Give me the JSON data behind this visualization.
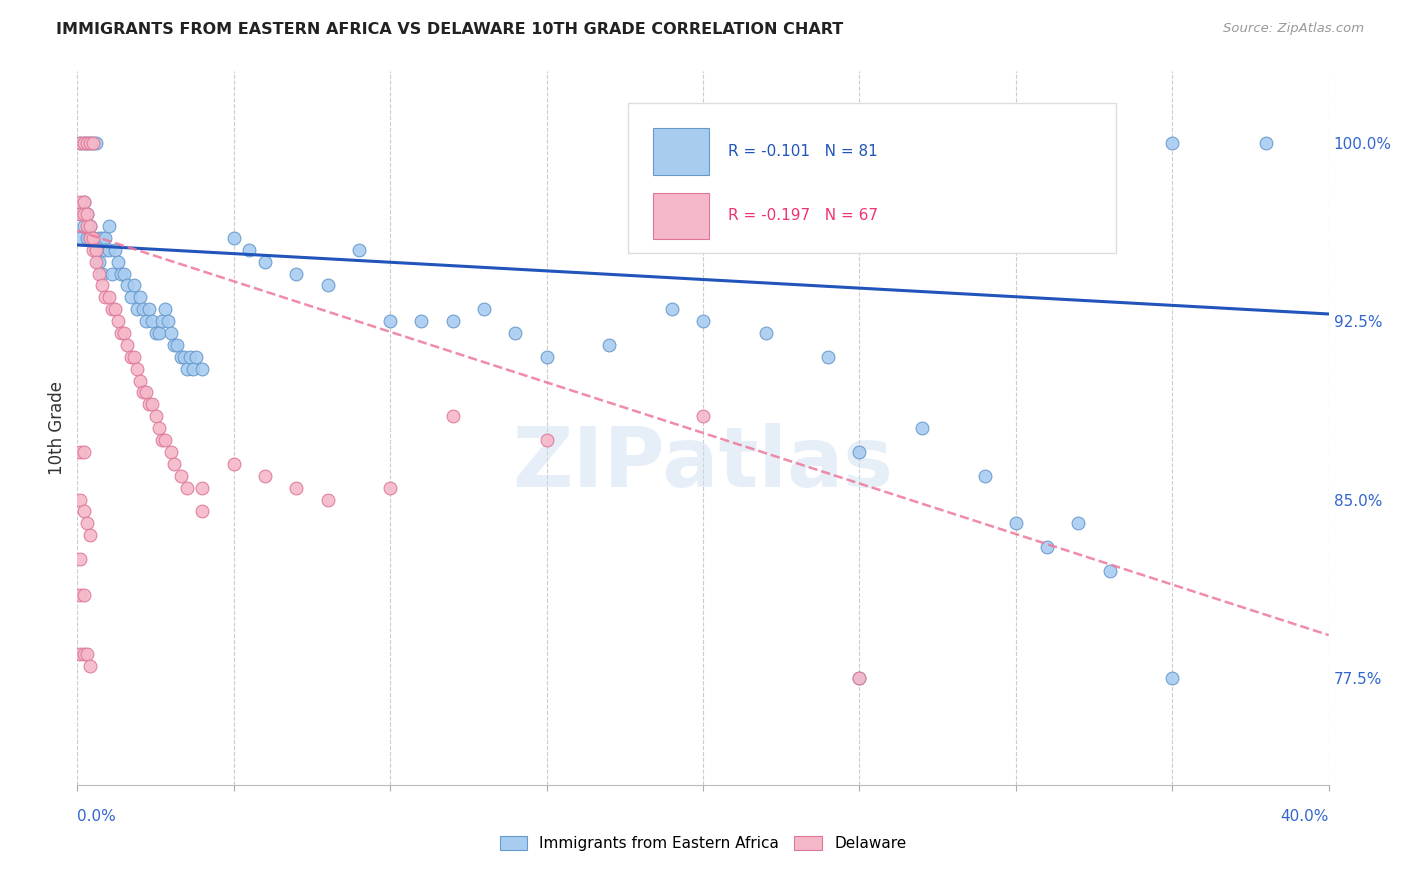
{
  "title": "IMMIGRANTS FROM EASTERN AFRICA VS DELAWARE 10TH GRADE CORRELATION CHART",
  "source": "Source: ZipAtlas.com",
  "ylabel": "10th Grade",
  "ytick_labels": [
    "100.0%",
    "92.5%",
    "85.0%",
    "77.5%"
  ],
  "ytick_values": [
    1.0,
    0.925,
    0.85,
    0.775
  ],
  "xmin": 0.0,
  "xmax": 0.4,
  "ymin": 0.73,
  "ymax": 1.03,
  "legend_blue_text": "R = -0.101   N = 81",
  "legend_pink_text": "R = -0.197   N = 67",
  "legend_blue_label": "Immigrants from Eastern Africa",
  "legend_pink_label": "Delaware",
  "watermark": "ZIPatlas",
  "blue_color": "#A8CCF0",
  "pink_color": "#F5B8C8",
  "blue_edge_color": "#6699CC",
  "pink_edge_color": "#DD7799",
  "blue_line_color": "#2255BB",
  "pink_line_color": "#EE7799",
  "blue_scatter_x": [
    0.001,
    0.001,
    0.001,
    0.002,
    0.002,
    0.002,
    0.003,
    0.003,
    0.003,
    0.004,
    0.004,
    0.004,
    0.005,
    0.005,
    0.006,
    0.006,
    0.007,
    0.007,
    0.008,
    0.008,
    0.009,
    0.009,
    0.01,
    0.01,
    0.011,
    0.012,
    0.013,
    0.014,
    0.015,
    0.016,
    0.017,
    0.018,
    0.019,
    0.02,
    0.021,
    0.022,
    0.023,
    0.024,
    0.025,
    0.026,
    0.027,
    0.028,
    0.029,
    0.03,
    0.031,
    0.032,
    0.033,
    0.034,
    0.035,
    0.036,
    0.037,
    0.038,
    0.04,
    0.05,
    0.055,
    0.06,
    0.07,
    0.08,
    0.09,
    0.1,
    0.11,
    0.12,
    0.13,
    0.14,
    0.15,
    0.17,
    0.19,
    0.2,
    0.22,
    0.24,
    0.25,
    0.27,
    0.29,
    0.31,
    0.33,
    0.35,
    0.38,
    0.25,
    0.3,
    0.32,
    0.35
  ],
  "blue_scatter_y": [
    0.97,
    0.96,
    1.0,
    0.975,
    0.965,
    1.0,
    0.97,
    0.96,
    1.0,
    0.965,
    0.96,
    1.0,
    0.96,
    1.0,
    0.955,
    1.0,
    0.95,
    0.96,
    0.945,
    0.96,
    0.96,
    0.955,
    0.965,
    0.955,
    0.945,
    0.955,
    0.95,
    0.945,
    0.945,
    0.94,
    0.935,
    0.94,
    0.93,
    0.935,
    0.93,
    0.925,
    0.93,
    0.925,
    0.92,
    0.92,
    0.925,
    0.93,
    0.925,
    0.92,
    0.915,
    0.915,
    0.91,
    0.91,
    0.905,
    0.91,
    0.905,
    0.91,
    0.905,
    0.96,
    0.955,
    0.95,
    0.945,
    0.94,
    0.955,
    0.925,
    0.925,
    0.925,
    0.93,
    0.92,
    0.91,
    0.915,
    0.93,
    0.925,
    0.92,
    0.91,
    0.87,
    0.88,
    0.86,
    0.83,
    0.82,
    1.0,
    1.0,
    0.775,
    0.84,
    0.84,
    0.775
  ],
  "pink_scatter_x": [
    0.001,
    0.001,
    0.001,
    0.001,
    0.001,
    0.001,
    0.002,
    0.002,
    0.002,
    0.002,
    0.002,
    0.003,
    0.003,
    0.003,
    0.003,
    0.004,
    0.004,
    0.004,
    0.004,
    0.005,
    0.005,
    0.005,
    0.006,
    0.006,
    0.007,
    0.008,
    0.009,
    0.01,
    0.011,
    0.012,
    0.013,
    0.014,
    0.015,
    0.016,
    0.017,
    0.018,
    0.019,
    0.02,
    0.021,
    0.022,
    0.023,
    0.024,
    0.025,
    0.026,
    0.027,
    0.028,
    0.03,
    0.031,
    0.033,
    0.035,
    0.04,
    0.04,
    0.05,
    0.06,
    0.07,
    0.08,
    0.1,
    0.12,
    0.15,
    0.2,
    0.25,
    0.001,
    0.002,
    0.001,
    0.002,
    0.003,
    0.004
  ],
  "pink_scatter_y": [
    0.975,
    0.97,
    0.87,
    0.85,
    0.825,
    1.0,
    0.975,
    0.97,
    0.87,
    0.845,
    1.0,
    0.965,
    0.97,
    0.84,
    1.0,
    0.965,
    0.96,
    0.835,
    1.0,
    0.96,
    0.955,
    1.0,
    0.955,
    0.95,
    0.945,
    0.94,
    0.935,
    0.935,
    0.93,
    0.93,
    0.925,
    0.92,
    0.92,
    0.915,
    0.91,
    0.91,
    0.905,
    0.9,
    0.895,
    0.895,
    0.89,
    0.89,
    0.885,
    0.88,
    0.875,
    0.875,
    0.87,
    0.865,
    0.86,
    0.855,
    0.855,
    0.845,
    0.865,
    0.86,
    0.855,
    0.85,
    0.855,
    0.885,
    0.875,
    0.885,
    0.775,
    0.81,
    0.81,
    0.785,
    0.785,
    0.785,
    0.78
  ],
  "blue_trend_x": [
    0.0,
    0.4
  ],
  "blue_trend_y": [
    0.957,
    0.928
  ],
  "pink_trend_x": [
    0.0,
    0.4
  ],
  "pink_trend_y": [
    0.963,
    0.793
  ]
}
